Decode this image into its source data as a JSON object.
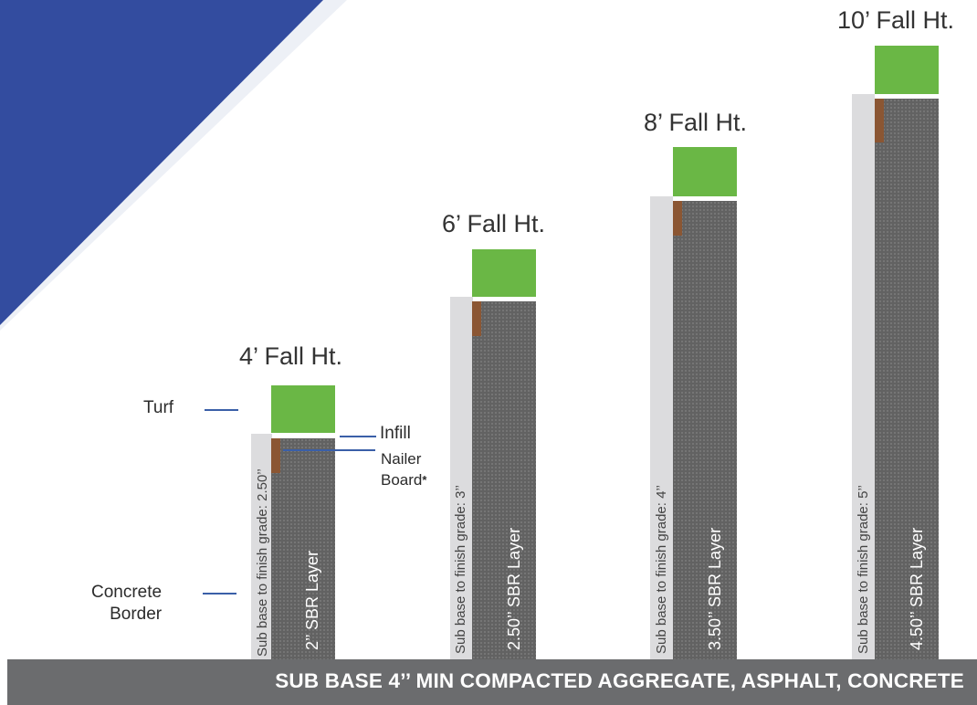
{
  "colors": {
    "background_accent": "#334c9f",
    "turf": "#6ab745",
    "nailer_board": "#8b5633",
    "sbr_layer": "#626262",
    "concrete_border": "#dcdcde",
    "sub_base": "#6b6c6e",
    "callout_line": "#3a5fa8"
  },
  "columns": [
    {
      "fall_height": "4’ Fall Ht.",
      "sbr_label": "2’’ SBR Layer",
      "grade_label": "Sub base to finish grade: 2.50’’"
    },
    {
      "fall_height": "6’ Fall Ht.",
      "sbr_label": "2.50’’ SBR Layer",
      "grade_label": "Sub base to finish grade: 3’’"
    },
    {
      "fall_height": "8’ Fall Ht.",
      "sbr_label": "3.50’’ SBR Layer",
      "grade_label": "Sub base to finish grade: 4’’"
    },
    {
      "fall_height": "10’ Fall Ht.",
      "sbr_label": "4.50’’ SBR Layer",
      "grade_label": "Sub base to finish grade: 5’’"
    }
  ],
  "legend": {
    "turf": "Turf",
    "infill": "Infill",
    "nailer_line1": "Nailer",
    "nailer_line2": "Board",
    "nailer_mark": "*",
    "concrete_line1": "Concrete",
    "concrete_line2": "Border"
  },
  "sub_base": {
    "label": "SUB BASE 4’’ MIN COMPACTED AGGREGATE, ASPHALT, CONCRETE"
  }
}
